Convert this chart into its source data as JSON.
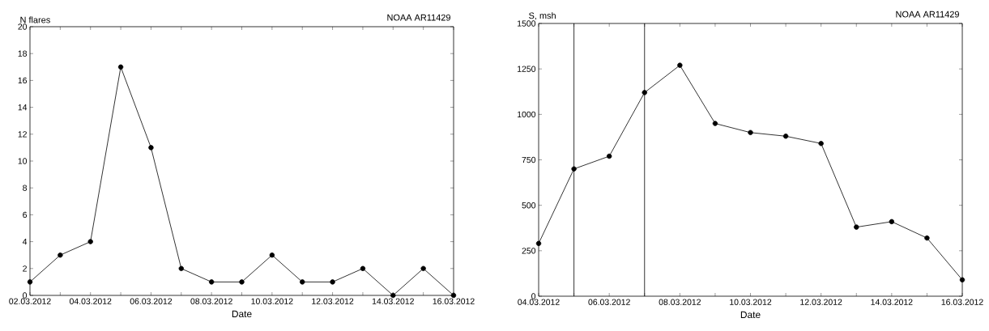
{
  "chart_data": [
    {
      "type": "line",
      "title": "NOAA AR11429",
      "ylabel": "N flares",
      "xlabel": "Date",
      "x": [
        "2012-03-02",
        "2012-03-03",
        "2012-03-04",
        "2012-03-05",
        "2012-03-06",
        "2012-03-07",
        "2012-03-08",
        "2012-03-09",
        "2012-03-10",
        "2012-03-11",
        "2012-03-12",
        "2012-03-13",
        "2012-03-14",
        "2012-03-15",
        "2012-03-16"
      ],
      "series": [
        {
          "color": "#000000",
          "values": [
            1,
            3,
            4,
            17,
            11,
            2,
            1,
            1,
            3,
            1,
            1,
            2,
            0,
            2,
            0
          ]
        }
      ],
      "xlim": [
        "2012-03-02",
        "2012-03-16"
      ],
      "xticks": [
        {
          "value": "2012-03-02",
          "label": "02.03.2012"
        },
        {
          "value": "2012-03-03",
          "label": null
        },
        {
          "value": "2012-03-04",
          "label": "04.03.2012"
        },
        {
          "value": "2012-03-05",
          "label": null
        },
        {
          "value": "2012-03-06",
          "label": "06.03.2012"
        },
        {
          "value": "2012-03-07",
          "label": null
        },
        {
          "value": "2012-03-08",
          "label": "08.03.2012"
        },
        {
          "value": "2012-03-09",
          "label": null
        },
        {
          "value": "2012-03-10",
          "label": "10.03.2012"
        },
        {
          "value": "2012-03-11",
          "label": null
        },
        {
          "value": "2012-03-12",
          "label": "12.03.2012"
        },
        {
          "value": "2012-03-13",
          "label": null
        },
        {
          "value": "2012-03-14",
          "label": "14.03.2012"
        },
        {
          "value": "2012-03-15",
          "label": null
        },
        {
          "value": "2012-03-16",
          "label": "16.03.2012"
        }
      ],
      "ylim": [
        0,
        20
      ],
      "yticks": [
        0,
        2,
        4,
        6,
        8,
        10,
        12,
        14,
        16,
        18,
        20
      ],
      "grid": false,
      "marker": "circle",
      "line_style": "solid"
    },
    {
      "type": "line",
      "title": "NOAA AR11429",
      "ylabel": "S, msh",
      "xlabel": "Date",
      "x": [
        "2012-03-04",
        "2012-03-05",
        "2012-03-06",
        "2012-03-07",
        "2012-03-08",
        "2012-03-09",
        "2012-03-10",
        "2012-03-11",
        "2012-03-12",
        "2012-03-13",
        "2012-03-14",
        "2012-03-15",
        "2012-03-16"
      ],
      "series": [
        {
          "color": "#000000",
          "values": [
            290,
            700,
            770,
            1120,
            1270,
            950,
            900,
            880,
            840,
            380,
            410,
            320,
            90
          ]
        }
      ],
      "xlim": [
        "2012-03-04",
        "2012-03-16"
      ],
      "xticks": [
        {
          "value": "2012-03-04",
          "label": "04.03.2012"
        },
        {
          "value": "2012-03-05",
          "label": null
        },
        {
          "value": "2012-03-06",
          "label": "06.03.2012"
        },
        {
          "value": "2012-03-07",
          "label": null
        },
        {
          "value": "2012-03-08",
          "label": "08.03.2012"
        },
        {
          "value": "2012-03-09",
          "label": null
        },
        {
          "value": "2012-03-10",
          "label": "10.03.2012"
        },
        {
          "value": "2012-03-11",
          "label": null
        },
        {
          "value": "2012-03-12",
          "label": "12.03.2012"
        },
        {
          "value": "2012-03-13",
          "label": null
        },
        {
          "value": "2012-03-14",
          "label": "14.03.2012"
        },
        {
          "value": "2012-03-15",
          "label": null
        },
        {
          "value": "2012-03-16",
          "label": "16.03.2012"
        }
      ],
      "ylim": [
        0,
        1500
      ],
      "yticks": [
        0,
        250,
        500,
        750,
        1000,
        1250,
        1500
      ],
      "ref_lines": [
        {
          "axis": "x",
          "value": "2012-03-05",
          "color": "#000000"
        },
        {
          "axis": "x",
          "value": "2012-03-07",
          "color": "#000000"
        }
      ],
      "grid": false,
      "marker": "circle",
      "line_style": "solid"
    }
  ]
}
